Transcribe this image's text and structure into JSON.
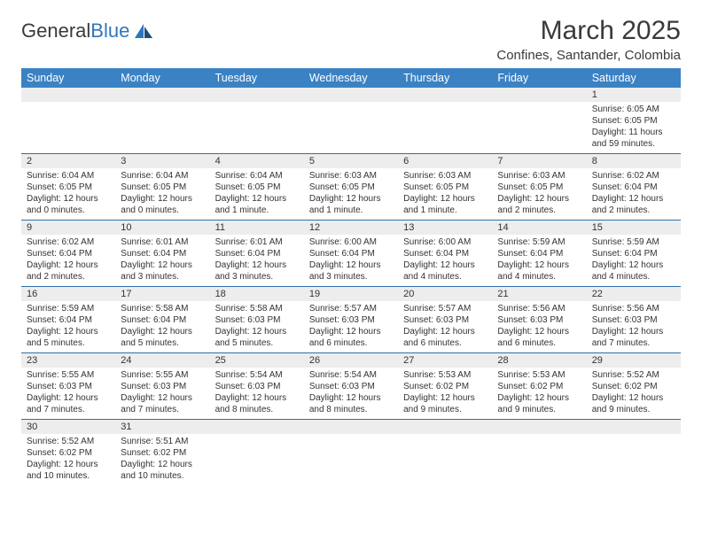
{
  "logo": {
    "text_a": "General",
    "text_b": "Blue"
  },
  "title": "March 2025",
  "location": "Confines, Santander, Colombia",
  "colors": {
    "header_bg": "#3b82c4",
    "header_text": "#ffffff",
    "daynum_bg": "#ededed",
    "row_divider": "#2f6fa8",
    "text": "#333333",
    "logo_blue": "#2f77bc"
  },
  "weekdays": [
    "Sunday",
    "Monday",
    "Tuesday",
    "Wednesday",
    "Thursday",
    "Friday",
    "Saturday"
  ],
  "weeks": [
    [
      null,
      null,
      null,
      null,
      null,
      null,
      {
        "d": "1",
        "sr": "6:05 AM",
        "ss": "6:05 PM",
        "dl": "11 hours and 59 minutes."
      }
    ],
    [
      {
        "d": "2",
        "sr": "6:04 AM",
        "ss": "6:05 PM",
        "dl": "12 hours and 0 minutes."
      },
      {
        "d": "3",
        "sr": "6:04 AM",
        "ss": "6:05 PM",
        "dl": "12 hours and 0 minutes."
      },
      {
        "d": "4",
        "sr": "6:04 AM",
        "ss": "6:05 PM",
        "dl": "12 hours and 1 minute."
      },
      {
        "d": "5",
        "sr": "6:03 AM",
        "ss": "6:05 PM",
        "dl": "12 hours and 1 minute."
      },
      {
        "d": "6",
        "sr": "6:03 AM",
        "ss": "6:05 PM",
        "dl": "12 hours and 1 minute."
      },
      {
        "d": "7",
        "sr": "6:03 AM",
        "ss": "6:05 PM",
        "dl": "12 hours and 2 minutes."
      },
      {
        "d": "8",
        "sr": "6:02 AM",
        "ss": "6:04 PM",
        "dl": "12 hours and 2 minutes."
      }
    ],
    [
      {
        "d": "9",
        "sr": "6:02 AM",
        "ss": "6:04 PM",
        "dl": "12 hours and 2 minutes."
      },
      {
        "d": "10",
        "sr": "6:01 AM",
        "ss": "6:04 PM",
        "dl": "12 hours and 3 minutes."
      },
      {
        "d": "11",
        "sr": "6:01 AM",
        "ss": "6:04 PM",
        "dl": "12 hours and 3 minutes."
      },
      {
        "d": "12",
        "sr": "6:00 AM",
        "ss": "6:04 PM",
        "dl": "12 hours and 3 minutes."
      },
      {
        "d": "13",
        "sr": "6:00 AM",
        "ss": "6:04 PM",
        "dl": "12 hours and 4 minutes."
      },
      {
        "d": "14",
        "sr": "5:59 AM",
        "ss": "6:04 PM",
        "dl": "12 hours and 4 minutes."
      },
      {
        "d": "15",
        "sr": "5:59 AM",
        "ss": "6:04 PM",
        "dl": "12 hours and 4 minutes."
      }
    ],
    [
      {
        "d": "16",
        "sr": "5:59 AM",
        "ss": "6:04 PM",
        "dl": "12 hours and 5 minutes."
      },
      {
        "d": "17",
        "sr": "5:58 AM",
        "ss": "6:04 PM",
        "dl": "12 hours and 5 minutes."
      },
      {
        "d": "18",
        "sr": "5:58 AM",
        "ss": "6:03 PM",
        "dl": "12 hours and 5 minutes."
      },
      {
        "d": "19",
        "sr": "5:57 AM",
        "ss": "6:03 PM",
        "dl": "12 hours and 6 minutes."
      },
      {
        "d": "20",
        "sr": "5:57 AM",
        "ss": "6:03 PM",
        "dl": "12 hours and 6 minutes."
      },
      {
        "d": "21",
        "sr": "5:56 AM",
        "ss": "6:03 PM",
        "dl": "12 hours and 6 minutes."
      },
      {
        "d": "22",
        "sr": "5:56 AM",
        "ss": "6:03 PM",
        "dl": "12 hours and 7 minutes."
      }
    ],
    [
      {
        "d": "23",
        "sr": "5:55 AM",
        "ss": "6:03 PM",
        "dl": "12 hours and 7 minutes."
      },
      {
        "d": "24",
        "sr": "5:55 AM",
        "ss": "6:03 PM",
        "dl": "12 hours and 7 minutes."
      },
      {
        "d": "25",
        "sr": "5:54 AM",
        "ss": "6:03 PM",
        "dl": "12 hours and 8 minutes."
      },
      {
        "d": "26",
        "sr": "5:54 AM",
        "ss": "6:03 PM",
        "dl": "12 hours and 8 minutes."
      },
      {
        "d": "27",
        "sr": "5:53 AM",
        "ss": "6:02 PM",
        "dl": "12 hours and 9 minutes."
      },
      {
        "d": "28",
        "sr": "5:53 AM",
        "ss": "6:02 PM",
        "dl": "12 hours and 9 minutes."
      },
      {
        "d": "29",
        "sr": "5:52 AM",
        "ss": "6:02 PM",
        "dl": "12 hours and 9 minutes."
      }
    ],
    [
      {
        "d": "30",
        "sr": "5:52 AM",
        "ss": "6:02 PM",
        "dl": "12 hours and 10 minutes."
      },
      {
        "d": "31",
        "sr": "5:51 AM",
        "ss": "6:02 PM",
        "dl": "12 hours and 10 minutes."
      },
      null,
      null,
      null,
      null,
      null
    ]
  ],
  "labels": {
    "sunrise": "Sunrise:",
    "sunset": "Sunset:",
    "daylight": "Daylight:"
  }
}
